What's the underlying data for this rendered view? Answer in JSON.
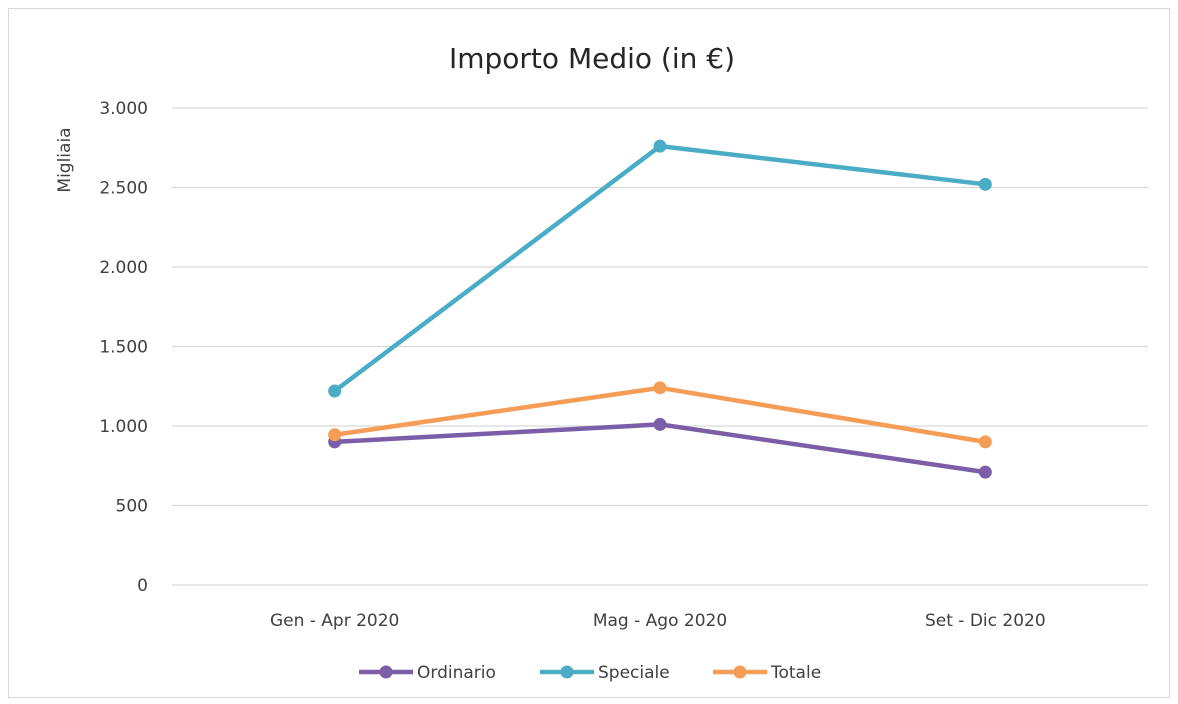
{
  "chart_data": {
    "type": "line",
    "title": "Importo Medio (in €)",
    "ylabel": "Migliaia",
    "xlabel": "",
    "categories": [
      "Gen - Apr 2020",
      "Mag - Ago 2020",
      "Set - Dic 2020"
    ],
    "ylim": [
      0,
      3000
    ],
    "yticks": [
      0,
      500,
      1000,
      1500,
      2000,
      2500,
      3000
    ],
    "ytick_labels": [
      "0",
      "500",
      "1.000",
      "1.500",
      "2.000",
      "2.500",
      "3.000"
    ],
    "grid": true,
    "legend_position": "bottom",
    "series": [
      {
        "name": "Ordinario",
        "color": "#7b5ea7",
        "values": [
          900,
          1010,
          710
        ]
      },
      {
        "name": "Speciale",
        "color": "#4bacc6",
        "values": [
          1220,
          2760,
          2520
        ]
      },
      {
        "name": "Totale",
        "color": "#f59d56",
        "values": [
          945,
          1240,
          900
        ]
      }
    ]
  }
}
